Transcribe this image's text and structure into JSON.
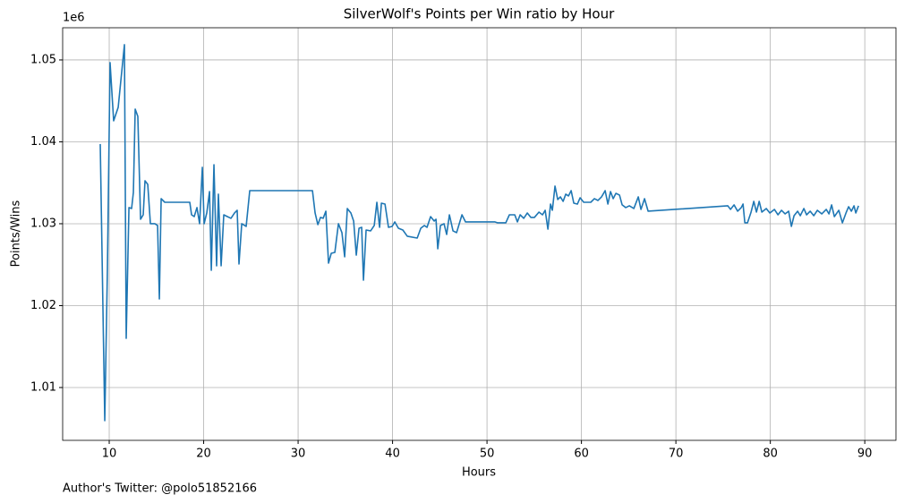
{
  "chart_data": {
    "type": "line",
    "title": "SilverWolf's Points per Win ratio by Hour",
    "xlabel": "Hours",
    "ylabel": "Points/Wins",
    "y_offset_label": "1e6",
    "footnote": "Author's Twitter: @polo51852166",
    "color": "#1f77b4",
    "grid": true,
    "xlim": [
      5.07,
      93.3
    ],
    "xticks": [
      10,
      20,
      30,
      40,
      50,
      60,
      70,
      80,
      90
    ],
    "ylim": [
      1.00355,
      1.05393
    ],
    "yticks": [
      1.01,
      1.02,
      1.03,
      1.04,
      1.05
    ],
    "x": [
      9.05,
      9.53,
      9.81,
      10.09,
      10.47,
      10.95,
      11.61,
      11.8,
      12.09,
      12.37,
      12.56,
      12.75,
      13.03,
      13.32,
      13.6,
      13.79,
      14.08,
      14.36,
      14.83,
      15.12,
      15.31,
      15.5,
      15.88,
      18.53,
      18.72,
      19.0,
      19.29,
      19.57,
      19.86,
      20.05,
      20.33,
      20.62,
      20.81,
      21.09,
      21.37,
      21.56,
      21.85,
      22.13,
      22.51,
      22.89,
      23.27,
      23.55,
      23.74,
      24.03,
      24.5,
      24.88,
      31.52,
      31.8,
      32.09,
      32.37,
      32.65,
      32.94,
      33.22,
      33.51,
      33.89,
      34.27,
      34.64,
      34.93,
      35.21,
      35.59,
      35.88,
      36.16,
      36.45,
      36.73,
      36.92,
      37.2,
      37.68,
      38.06,
      38.34,
      38.63,
      38.82,
      39.2,
      39.57,
      39.95,
      40.24,
      40.62,
      41.09,
      41.56,
      42.61,
      42.99,
      43.36,
      43.65,
      44.03,
      44.41,
      44.6,
      44.79,
      45.07,
      45.45,
      45.73,
      46.02,
      46.4,
      46.78,
      47.35,
      47.73,
      50.85,
      51.14,
      51.99,
      52.37,
      52.94,
      53.22,
      53.51,
      53.89,
      54.27,
      54.64,
      55.02,
      55.5,
      55.88,
      56.16,
      56.45,
      56.73,
      56.92,
      57.2,
      57.49,
      57.77,
      58.06,
      58.34,
      58.63,
      58.91,
      59.19,
      59.57,
      59.86,
      60.24,
      60.99,
      61.37,
      61.75,
      62.13,
      62.51,
      62.8,
      63.08,
      63.36,
      63.65,
      64.03,
      64.31,
      64.69,
      65.07,
      65.55,
      66.02,
      66.3,
      66.68,
      67.06,
      75.5,
      75.78,
      76.16,
      76.54,
      76.92,
      77.11,
      77.3,
      77.58,
      77.96,
      78.25,
      78.53,
      78.82,
      79.1,
      79.57,
      79.95,
      80.43,
      80.81,
      81.18,
      81.56,
      81.94,
      82.23,
      82.51,
      82.89,
      83.17,
      83.55,
      83.84,
      84.22,
      84.6,
      84.98,
      85.45,
      85.92,
      86.21,
      86.49,
      86.78,
      87.25,
      87.63,
      88.01,
      88.29,
      88.58,
      88.86,
      89.05,
      89.34
    ],
    "values": [
      1.03973,
      1.00596,
      1.02454,
      1.04967,
      1.04257,
      1.04421,
      1.05186,
      1.01601,
      1.03197,
      1.03186,
      1.03383,
      1.04399,
      1.04311,
      1.03055,
      1.03109,
      1.03525,
      1.03481,
      1.03,
      1.03,
      1.02978,
      1.02082,
      1.03306,
      1.03262,
      1.03262,
      1.03109,
      1.03087,
      1.03197,
      1.03,
      1.03689,
      1.03,
      1.03131,
      1.03393,
      1.02432,
      1.03721,
      1.02486,
      1.03361,
      1.02486,
      1.03109,
      1.03087,
      1.03066,
      1.03131,
      1.03164,
      1.02508,
      1.03,
      1.02967,
      1.03404,
      1.03404,
      1.03131,
      1.02989,
      1.03077,
      1.03066,
      1.03153,
      1.02519,
      1.02639,
      1.0265,
      1.03,
      1.02891,
      1.02596,
      1.03186,
      1.03131,
      1.03033,
      1.02617,
      1.02945,
      1.02956,
      1.02311,
      1.02923,
      1.02913,
      1.02978,
      1.03262,
      1.02956,
      1.03251,
      1.0324,
      1.02956,
      1.02967,
      1.03022,
      1.02945,
      1.02923,
      1.02847,
      1.02825,
      1.02945,
      1.02978,
      1.02956,
      1.03087,
      1.03033,
      1.03055,
      1.02694,
      1.02978,
      1.03,
      1.02869,
      1.03109,
      1.02913,
      1.02891,
      1.03109,
      1.03022,
      1.03022,
      1.03011,
      1.03011,
      1.03109,
      1.03109,
      1.03022,
      1.03109,
      1.03066,
      1.03131,
      1.03077,
      1.03077,
      1.03142,
      1.03109,
      1.03164,
      1.02934,
      1.0324,
      1.03164,
      1.03459,
      1.03295,
      1.03328,
      1.03273,
      1.03361,
      1.03339,
      1.03404,
      1.03251,
      1.0324,
      1.03317,
      1.03262,
      1.03262,
      1.03306,
      1.03284,
      1.03328,
      1.03404,
      1.0324,
      1.03393,
      1.03306,
      1.03371,
      1.0335,
      1.0323,
      1.03197,
      1.03219,
      1.03186,
      1.03328,
      1.03175,
      1.03306,
      1.03153,
      1.03219,
      1.03175,
      1.0323,
      1.03153,
      1.03197,
      1.0324,
      1.03011,
      1.03011,
      1.03142,
      1.03273,
      1.03142,
      1.03273,
      1.03142,
      1.03186,
      1.03131,
      1.03175,
      1.03109,
      1.03164,
      1.0312,
      1.03153,
      1.02967,
      1.03098,
      1.03153,
      1.03098,
      1.03186,
      1.03109,
      1.03153,
      1.03098,
      1.03164,
      1.0312,
      1.03175,
      1.0312,
      1.0323,
      1.03087,
      1.03164,
      1.03011,
      1.03131,
      1.03208,
      1.03153,
      1.03219,
      1.03131,
      1.03219
    ]
  }
}
